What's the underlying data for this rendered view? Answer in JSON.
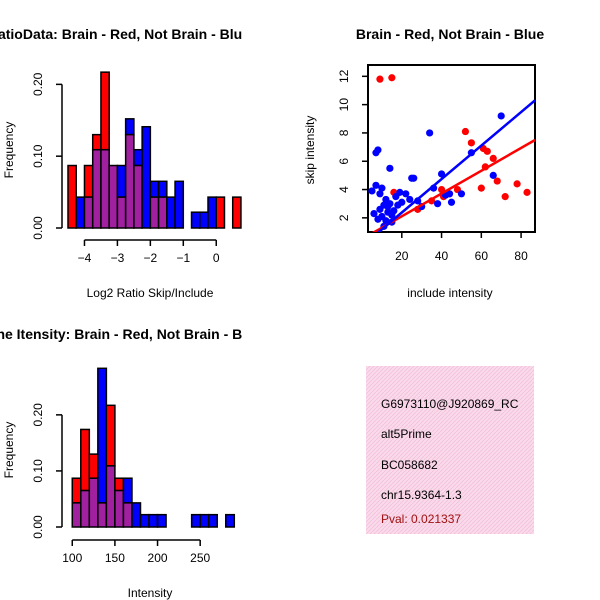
{
  "colors": {
    "brain": "#ff0000",
    "not_brain": "#0000ff",
    "overlap": "#a020a0",
    "info_bg": "#f9d9ea",
    "pval": "#a01010"
  },
  "chart_data": [
    {
      "id": "ratio_hist",
      "type": "histogram",
      "title": "RatioData: Brain - Red, Not Brain - Blu",
      "xlabel": "Log2 Ratio Skip/Include",
      "ylabel": "Frequency",
      "xlim": [
        -4.5,
        0.6
      ],
      "ylim": [
        0,
        0.22
      ],
      "xticks": [
        -4,
        -3,
        -2,
        -1,
        0
      ],
      "xtick_labels": [
        "−4",
        "−3",
        "−2",
        "−1",
        "0"
      ],
      "yticks": [
        0.0,
        0.1,
        0.2
      ],
      "ytick_labels": [
        "0.00",
        "0.10",
        "0.20"
      ],
      "bin_start": -4.5,
      "bin_width": 0.25,
      "series": [
        {
          "name": "Brain",
          "color": "red",
          "values": [
            0.087,
            0.0,
            0.087,
            0.13,
            0.217,
            0.087,
            0.043,
            0.13,
            0.087,
            0.0,
            0.043,
            0.043,
            0.0,
            0.0,
            0.0,
            0.0,
            0.0,
            0.0,
            0.043,
            0.0,
            0.043
          ]
        },
        {
          "name": "Not Brain",
          "color": "blue",
          "values": [
            0.0,
            0.043,
            0.043,
            0.109,
            0.109,
            0.087,
            0.087,
            0.152,
            0.109,
            0.141,
            0.065,
            0.065,
            0.043,
            0.065,
            0.0,
            0.022,
            0.022,
            0.043,
            0.0,
            0.0,
            0.0
          ]
        }
      ]
    },
    {
      "id": "intensity_scatter",
      "type": "scatter",
      "title": "Brain - Red, Not Brain - Blue",
      "xlabel": "include intensity",
      "ylabel": "skip intensity",
      "xlim": [
        3,
        87
      ],
      "ylim": [
        1,
        12.8
      ],
      "xticks": [
        20,
        40,
        60,
        80
      ],
      "xtick_labels": [
        "20",
        "40",
        "60",
        "80"
      ],
      "yticks": [
        2,
        4,
        6,
        8,
        10,
        12
      ],
      "ytick_labels": [
        "2",
        "4",
        "6",
        "8",
        "10",
        "12"
      ],
      "series": [
        {
          "name": "Brain",
          "color": "red",
          "x": [
            9,
            15,
            16,
            28,
            35,
            40,
            41,
            44,
            48,
            52,
            55,
            60,
            61,
            62,
            63,
            66,
            68,
            72,
            78,
            83
          ],
          "y": [
            11.8,
            11.9,
            3.8,
            2.6,
            3.2,
            4.0,
            3.5,
            3.7,
            4.0,
            8.1,
            7.3,
            4.1,
            6.9,
            5.6,
            6.7,
            6.2,
            4.6,
            3.5,
            4.4,
            3.8
          ],
          "fit": [
            [
              5,
              0.9
            ],
            [
              87,
              7.5
            ]
          ]
        },
        {
          "name": "Not Brain",
          "color": "blue",
          "x": [
            5,
            6,
            7,
            7,
            8,
            8,
            9,
            9,
            10,
            10,
            11,
            11,
            12,
            12,
            13,
            13,
            14,
            14,
            15,
            15,
            16,
            17,
            18,
            19,
            20,
            22,
            24,
            25,
            26,
            28,
            30,
            34,
            36,
            38,
            40,
            42,
            44,
            45,
            50,
            55,
            66,
            70
          ],
          "y": [
            3.9,
            2.3,
            4.3,
            6.6,
            1.9,
            6.8,
            2.6,
            3.7,
            4.1,
            2.1,
            1.4,
            2.9,
            3.3,
            1.8,
            2.4,
            2.8,
            5.5,
            3.0,
            2.2,
            1.7,
            2.5,
            3.5,
            2.9,
            3.8,
            3.1,
            3.7,
            3.3,
            4.8,
            4.8,
            3.2,
            2.8,
            8.0,
            4.1,
            3.0,
            5.1,
            3.6,
            3.7,
            3.1,
            3.7,
            6.6,
            5.0,
            9.2
          ],
          "fit": [
            [
              5,
              0.6
            ],
            [
              87,
              10.3
            ]
          ]
        }
      ]
    },
    {
      "id": "intensity_hist",
      "type": "histogram",
      "title": "Gene Itensity: Brain - Red, Not Brain - B",
      "xlabel": "Intensity",
      "ylabel": "Frequency",
      "xlim": [
        95,
        292
      ],
      "ylim": [
        0,
        0.28
      ],
      "xticks": [
        100,
        150,
        200,
        250
      ],
      "xtick_labels": [
        "100",
        "150",
        "200",
        "250"
      ],
      "yticks": [
        0.0,
        0.1,
        0.2
      ],
      "ytick_labels": [
        "0.00",
        "0.10",
        "0.20"
      ],
      "bin_start": 100,
      "bin_width": 10,
      "series": [
        {
          "name": "Brain",
          "color": "red",
          "values": [
            0.087,
            0.174,
            0.13,
            0.043,
            0.217,
            0.087,
            0.043,
            0.0,
            0.0,
            0.0,
            0.0,
            0.0,
            0.0,
            0.0,
            0.0,
            0.0,
            0.0,
            0.0,
            0.0
          ]
        },
        {
          "name": "Not Brain",
          "color": "blue",
          "values": [
            0.043,
            0.065,
            0.087,
            0.283,
            0.109,
            0.065,
            0.087,
            0.043,
            0.022,
            0.022,
            0.022,
            0.0,
            0.0,
            0.0,
            0.022,
            0.022,
            0.022,
            0.0,
            0.022
          ]
        }
      ]
    }
  ],
  "info_box": {
    "gene_id": "G6973110@J920869_RC",
    "event_type": "alt5Prime",
    "accession": "BC058682",
    "location": "chr15.9364-1.3",
    "pval": "Pval: 0.021337"
  }
}
